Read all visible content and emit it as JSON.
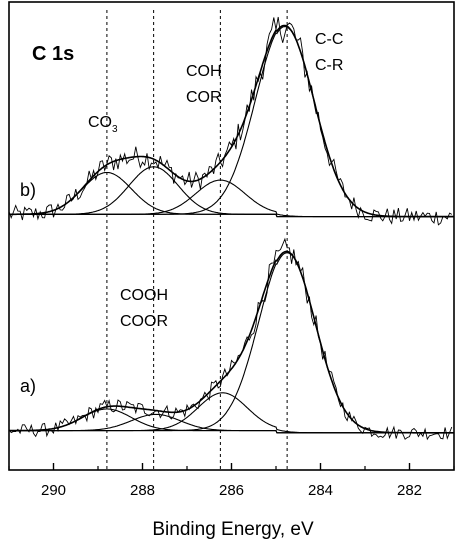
{
  "chart_data": {
    "type": "line",
    "title": "C 1s",
    "xlabel": "Binding Energy, eV",
    "ylabel": "",
    "xlim": [
      291,
      281
    ],
    "x_reversed": true,
    "xticks": [
      "290",
      "288",
      "286",
      "284",
      "282"
    ],
    "xtick_values": [
      290,
      288,
      286,
      284,
      282
    ],
    "reference_lines_x": [
      288.8,
      287.75,
      286.25,
      284.75
    ],
    "annotations": [
      {
        "lines": [
          "C-C",
          "C-R"
        ],
        "x": 284.5,
        "panel": "b"
      },
      {
        "lines": [
          "COH",
          "COR"
        ],
        "x": 286.4,
        "panel": "b"
      },
      {
        "lines": [
          "CO",
          "3"
        ],
        "x": 289.3,
        "panel": "b",
        "subscript": true
      },
      {
        "lines": [
          "COOH",
          "COOR"
        ],
        "x": 287.7,
        "panel": "a"
      }
    ],
    "panels": [
      {
        "label": "b)",
        "baseline": 0.03,
        "components": [
          {
            "name": "C-C C-R",
            "center": 284.8,
            "height": 1.0,
            "fwhm": 1.55
          },
          {
            "name": "COH COR",
            "center": 286.25,
            "height": 0.18,
            "fwhm": 1.3
          },
          {
            "name": "",
            "center": 287.75,
            "height": 0.25,
            "fwhm": 1.3
          },
          {
            "name": "",
            "center": 288.8,
            "height": 0.22,
            "fwhm": 1.3
          }
        ]
      },
      {
        "label": "a)",
        "baseline": 0.03,
        "components": [
          {
            "name": "C-C C-R",
            "center": 284.75,
            "height": 1.0,
            "fwhm": 1.5
          },
          {
            "name": "COH COR",
            "center": 286.2,
            "height": 0.21,
            "fwhm": 1.3
          },
          {
            "name": "",
            "center": 287.7,
            "height": 0.09,
            "fwhm": 1.3
          },
          {
            "name": "",
            "center": 288.8,
            "height": 0.12,
            "fwhm": 1.3
          }
        ]
      }
    ]
  }
}
